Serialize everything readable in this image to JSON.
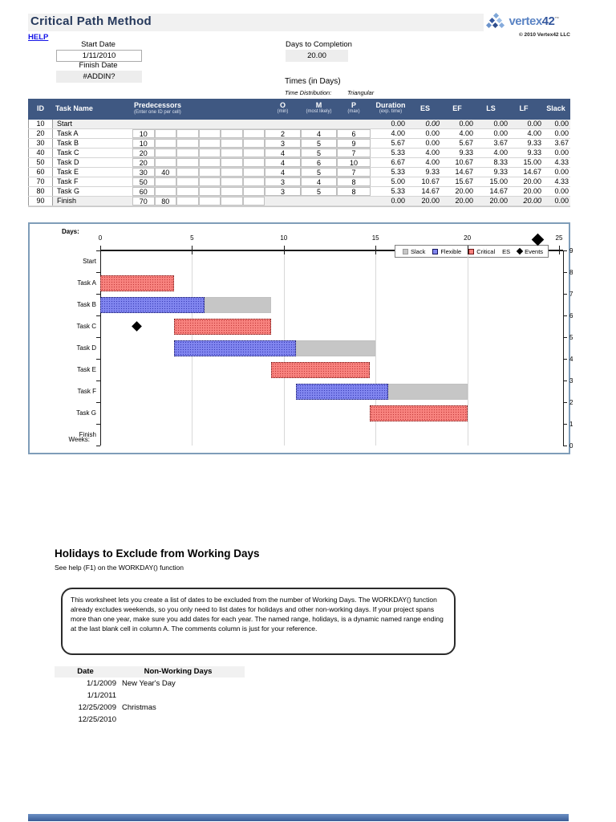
{
  "header": {
    "title": "Critical Path Method",
    "help_link": "HELP",
    "logo": {
      "brand": "vertex",
      "brand_num": "42",
      "tm": "™",
      "copyright": "© 2010 Vertex42 LLC"
    }
  },
  "controls": {
    "start_date_label": "Start Date",
    "start_date_value": "1/11/2010",
    "finish_date_label": "Finish Date",
    "finish_date_value": "#ADDIN?",
    "days_to_completion_label": "Days to Completion",
    "days_to_completion_value": "20.00",
    "times_heading": "Times (in Days)",
    "time_distribution_label": "Time Distribution:",
    "time_distribution_value": "Triangular"
  },
  "task_table": {
    "col_id": "ID",
    "col_task": "Task Name",
    "col_pred": "Predecessors",
    "col_pred_sub": "(Enter one ID per cell)",
    "col_o": "O",
    "col_o_sub": "(min)",
    "col_m": "M",
    "col_m_sub": "(most likely)",
    "col_p": "P",
    "col_p_sub": "(max)",
    "col_duration": "Duration",
    "col_duration_sub": "(exp. time)",
    "col_es": "ES",
    "col_ef": "EF",
    "col_ls": "LS",
    "col_lf": "LF",
    "col_slack": "Slack",
    "rows": [
      {
        "id": "10",
        "name": "Start",
        "preds": [],
        "o": "",
        "m": "",
        "p": "",
        "duration": "0.00",
        "es": "0.00",
        "ef": "0.00",
        "ls": "0.00",
        "lf": "0.00",
        "slack": "0.00",
        "kind": "milestone",
        "show_pred_cells": false,
        "show_omp_cells": false,
        "es_italic": true,
        "lf_italic": false
      },
      {
        "id": "20",
        "name": "Task A",
        "preds": [
          "10"
        ],
        "o": "2",
        "m": "4",
        "p": "6",
        "duration": "4.00",
        "es": "0.00",
        "ef": "4.00",
        "ls": "0.00",
        "lf": "4.00",
        "slack": "0.00",
        "kind": "task",
        "show_pred_cells": true,
        "show_omp_cells": true,
        "es_italic": false,
        "lf_italic": false
      },
      {
        "id": "30",
        "name": "Task B",
        "preds": [
          "10"
        ],
        "o": "3",
        "m": "5",
        "p": "9",
        "duration": "5.67",
        "es": "0.00",
        "ef": "5.67",
        "ls": "3.67",
        "lf": "9.33",
        "slack": "3.67",
        "kind": "task",
        "show_pred_cells": true,
        "show_omp_cells": true,
        "es_italic": false,
        "lf_italic": false
      },
      {
        "id": "40",
        "name": "Task C",
        "preds": [
          "20"
        ],
        "o": "4",
        "m": "5",
        "p": "7",
        "duration": "5.33",
        "es": "4.00",
        "ef": "9.33",
        "ls": "4.00",
        "lf": "9.33",
        "slack": "0.00",
        "kind": "task",
        "show_pred_cells": true,
        "show_omp_cells": true,
        "es_italic": false,
        "lf_italic": false
      },
      {
        "id": "50",
        "name": "Task D",
        "preds": [
          "20"
        ],
        "o": "4",
        "m": "6",
        "p": "10",
        "duration": "6.67",
        "es": "4.00",
        "ef": "10.67",
        "ls": "8.33",
        "lf": "15.00",
        "slack": "4.33",
        "kind": "task",
        "show_pred_cells": true,
        "show_omp_cells": true,
        "es_italic": false,
        "lf_italic": false
      },
      {
        "id": "60",
        "name": "Task E",
        "preds": [
          "30",
          "40"
        ],
        "o": "4",
        "m": "5",
        "p": "7",
        "duration": "5.33",
        "es": "9.33",
        "ef": "14.67",
        "ls": "9.33",
        "lf": "14.67",
        "slack": "0.00",
        "kind": "task",
        "show_pred_cells": true,
        "show_omp_cells": true,
        "es_italic": false,
        "lf_italic": false
      },
      {
        "id": "70",
        "name": "Task F",
        "preds": [
          "50"
        ],
        "o": "3",
        "m": "4",
        "p": "8",
        "duration": "5.00",
        "es": "10.67",
        "ef": "15.67",
        "ls": "15.00",
        "lf": "20.00",
        "slack": "4.33",
        "kind": "task",
        "show_pred_cells": true,
        "show_omp_cells": true,
        "es_italic": false,
        "lf_italic": false
      },
      {
        "id": "80",
        "name": "Task G",
        "preds": [
          "60"
        ],
        "o": "3",
        "m": "5",
        "p": "8",
        "duration": "5.33",
        "es": "14.67",
        "ef": "20.00",
        "ls": "14.67",
        "lf": "20.00",
        "slack": "0.00",
        "kind": "task",
        "show_pred_cells": true,
        "show_omp_cells": true,
        "es_italic": false,
        "lf_italic": false
      },
      {
        "id": "90",
        "name": "Finish",
        "preds": [
          "70",
          "80"
        ],
        "o": "",
        "m": "",
        "p": "",
        "duration": "0.00",
        "es": "20.00",
        "ef": "20.00",
        "ls": "20.00",
        "lf": "20.00",
        "slack": "0.00",
        "kind": "milestone",
        "show_pred_cells": true,
        "show_omp_cells": false,
        "es_italic": false,
        "lf_italic": true
      }
    ]
  },
  "chart_data": {
    "type": "gantt-bar",
    "x_axis_label": "Days:",
    "secondary_axis_label": "Weeks:",
    "xlim": [
      0,
      25
    ],
    "x_ticks": [
      0,
      5,
      10,
      15,
      20,
      25
    ],
    "gridlines": [
      5,
      10,
      15,
      20
    ],
    "right_axis_ticks": [
      9,
      8,
      7,
      6,
      5,
      4,
      3,
      2,
      1,
      0
    ],
    "categories": [
      "Start",
      "Task A",
      "Task B",
      "Task C",
      "Task D",
      "Task E",
      "Task F",
      "Task G",
      "Finish"
    ],
    "legend": [
      {
        "label": "Slack",
        "type": "slack"
      },
      {
        "label": "Flexible",
        "type": "flexible"
      },
      {
        "label": "Critical",
        "type": "critical"
      },
      {
        "label": "ES",
        "type": "es"
      },
      {
        "label": "Events",
        "type": "event"
      }
    ],
    "colors": {
      "critical": "#F8837F",
      "flexible": "#8186EF",
      "slack": "#C6C6C6",
      "event": "#000000"
    },
    "bars": [
      {
        "task": "Start",
        "segments": [],
        "events": []
      },
      {
        "task": "Task A",
        "segments": [
          {
            "type": "critical",
            "start": 0,
            "end": 4
          }
        ],
        "events": []
      },
      {
        "task": "Task B",
        "segments": [
          {
            "type": "flexible",
            "start": 0,
            "end": 5.67
          },
          {
            "type": "slack",
            "start": 5.67,
            "end": 9.33
          }
        ],
        "events": []
      },
      {
        "task": "Task C",
        "segments": [
          {
            "type": "critical",
            "start": 4,
            "end": 9.33
          }
        ],
        "events": [
          2
        ]
      },
      {
        "task": "Task D",
        "segments": [
          {
            "type": "flexible",
            "start": 4,
            "end": 10.67
          },
          {
            "type": "slack",
            "start": 10.67,
            "end": 15
          }
        ],
        "events": []
      },
      {
        "task": "Task E",
        "segments": [
          {
            "type": "critical",
            "start": 9.33,
            "end": 14.67
          }
        ],
        "events": []
      },
      {
        "task": "Task F",
        "segments": [
          {
            "type": "flexible",
            "start": 10.67,
            "end": 15.67
          },
          {
            "type": "slack",
            "start": 15.67,
            "end": 20
          }
        ],
        "events": []
      },
      {
        "task": "Task G",
        "segments": [
          {
            "type": "critical",
            "start": 14.67,
            "end": 20
          }
        ],
        "events": []
      },
      {
        "task": "Finish",
        "segments": [],
        "events": []
      }
    ],
    "floating_event_day": 23.8
  },
  "holidays": {
    "heading": "Holidays to Exclude from Working Days",
    "subheading": "See help (F1) on the WORKDAY() function",
    "note": "This worksheet lets you create a list of dates to be excluded from the number of Working Days. The WORKDAY() function already excludes weekends, so you only need to list dates for holidays and other non-working days. If your project spans more than one year, make sure you add dates for each year. The named range, holidays, is a dynamic named range ending at the last blank cell in column A. The comments column is just for your reference.",
    "table": {
      "col_date": "Date",
      "col_name": "Non-Working Days",
      "rows": [
        {
          "date": "1/1/2009",
          "name": "New Year's Day"
        },
        {
          "date": "1/1/2011",
          "name": ""
        },
        {
          "date": "12/25/2009",
          "name": "Christmas"
        },
        {
          "date": "12/25/2010",
          "name": ""
        }
      ]
    }
  }
}
